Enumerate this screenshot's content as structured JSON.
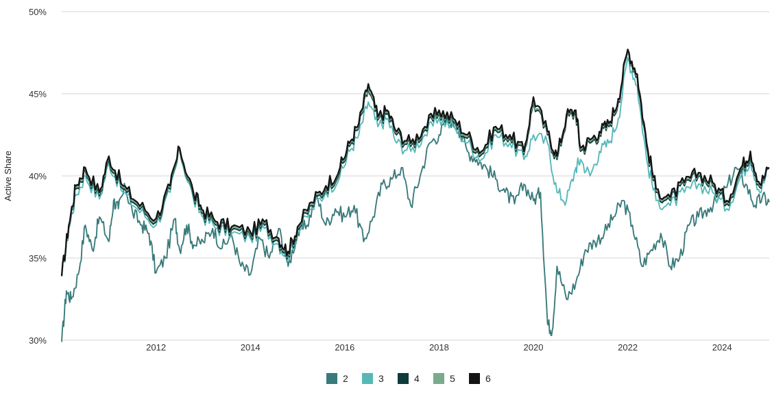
{
  "chart_data": {
    "type": "line",
    "title": "",
    "xlabel": "",
    "ylabel": "Active Share",
    "xlim": [
      2010.0,
      2025.0
    ],
    "ylim": [
      30,
      50
    ],
    "x_ticks": [
      2012,
      2014,
      2016,
      2018,
      2020,
      2022,
      2024
    ],
    "x_tick_labels": [
      "2012",
      "2014",
      "2016",
      "2018",
      "2020",
      "2022",
      "2024"
    ],
    "y_ticks": [
      30,
      35,
      40,
      45,
      50
    ],
    "y_tick_labels": [
      "30%",
      "35%",
      "40%",
      "45%",
      "50%"
    ],
    "grid": "horizontal",
    "legend_position": "bottom-center",
    "series": [
      {
        "name": "2",
        "color": "#3a7a7a",
        "x": [
          2010.0,
          2010.1,
          2010.2,
          2010.35,
          2010.5,
          2010.65,
          2010.8,
          2011.0,
          2011.1,
          2011.2,
          2011.35,
          2011.5,
          2011.7,
          2011.85,
          2012.0,
          2012.2,
          2012.4,
          2012.5,
          2012.65,
          2012.8,
          2013.0,
          2013.2,
          2013.4,
          2013.6,
          2013.8,
          2014.0,
          2014.2,
          2014.4,
          2014.6,
          2014.8,
          2015.0,
          2015.2,
          2015.4,
          2015.6,
          2015.8,
          2016.0,
          2016.2,
          2016.4,
          2016.6,
          2016.8,
          2017.0,
          2017.2,
          2017.4,
          2017.6,
          2017.8,
          2018.0,
          2018.2,
          2018.4,
          2018.6,
          2018.8,
          2019.0,
          2019.2,
          2019.4,
          2019.6,
          2019.8,
          2020.0,
          2020.15,
          2020.3,
          2020.4,
          2020.5,
          2020.7,
          2020.9,
          2021.1,
          2021.3,
          2021.5,
          2021.7,
          2021.9,
          2022.1,
          2022.3,
          2022.5,
          2022.7,
          2022.9,
          2023.1,
          2023.3,
          2023.5,
          2023.7,
          2023.9,
          2024.1,
          2024.3,
          2024.5,
          2024.7,
          2024.85,
          2025.0
        ],
        "y": [
          29.9,
          33.0,
          32.5,
          34.0,
          37.0,
          35.5,
          37.5,
          36.0,
          38.5,
          38.0,
          39.3,
          37.8,
          37.0,
          36.5,
          34.1,
          35.0,
          37.4,
          35.5,
          37.0,
          35.8,
          36.0,
          36.8,
          35.6,
          36.4,
          34.5,
          34.0,
          36.2,
          35.0,
          36.8,
          34.5,
          36.5,
          37.0,
          38.8,
          37.0,
          38.0,
          37.5,
          38.2,
          36.0,
          37.5,
          39.5,
          39.8,
          40.5,
          38.2,
          40.0,
          42.0,
          42.5,
          43.5,
          43.0,
          41.5,
          41.0,
          40.5,
          39.8,
          39.0,
          38.3,
          39.5,
          38.5,
          39.0,
          31.0,
          30.6,
          34.5,
          32.5,
          33.5,
          35.5,
          36.0,
          36.5,
          37.5,
          38.5,
          37.0,
          34.5,
          35.5,
          36.5,
          34.5,
          35.0,
          37.0,
          37.5,
          38.0,
          38.5,
          39.3,
          40.5,
          39.5,
          38.2,
          38.7,
          38.4
        ]
      },
      {
        "name": "3",
        "color": "#57b8b8",
        "x": [
          2010.0,
          2010.15,
          2010.3,
          2010.5,
          2010.8,
          2011.0,
          2011.3,
          2011.6,
          2012.0,
          2012.3,
          2012.5,
          2012.8,
          2013.0,
          2013.3,
          2013.6,
          2014.0,
          2014.3,
          2014.6,
          2014.8,
          2015.0,
          2015.3,
          2015.6,
          2015.9,
          2016.1,
          2016.3,
          2016.5,
          2016.7,
          2016.9,
          2017.1,
          2017.4,
          2017.7,
          2018.0,
          2018.3,
          2018.6,
          2018.9,
          2019.2,
          2019.5,
          2019.8,
          2020.0,
          2020.3,
          2020.5,
          2020.7,
          2020.9,
          2021.0,
          2021.2,
          2021.4,
          2021.6,
          2021.8,
          2022.0,
          2022.2,
          2022.4,
          2022.6,
          2022.9,
          2023.2,
          2023.5,
          2023.8,
          2024.1,
          2024.4,
          2024.6,
          2024.8,
          2025.0
        ],
        "y": [
          33.9,
          36.8,
          38.8,
          40.0,
          38.6,
          40.8,
          39.0,
          38.0,
          37.0,
          39.0,
          41.5,
          38.5,
          37.5,
          36.8,
          36.5,
          36.2,
          36.8,
          35.8,
          35.0,
          36.5,
          38.0,
          39.0,
          40.0,
          41.5,
          42.5,
          44.5,
          43.0,
          43.5,
          42.0,
          41.5,
          42.5,
          43.5,
          43.0,
          42.0,
          41.0,
          42.5,
          42.0,
          41.0,
          42.5,
          42.0,
          39.0,
          38.5,
          40.5,
          41.0,
          40.0,
          41.5,
          42.0,
          43.5,
          47.2,
          45.5,
          41.0,
          38.5,
          38.2,
          39.0,
          39.5,
          39.0,
          38.0,
          40.0,
          41.0,
          39.0,
          40.5
        ]
      },
      {
        "name": "4",
        "color": "#0f3b3b",
        "x": [
          2010.0,
          2010.15,
          2010.3,
          2010.5,
          2010.8,
          2011.0,
          2011.3,
          2011.6,
          2012.0,
          2012.3,
          2012.5,
          2012.8,
          2013.0,
          2013.3,
          2013.6,
          2014.0,
          2014.3,
          2014.6,
          2014.8,
          2015.0,
          2015.3,
          2015.6,
          2015.9,
          2016.1,
          2016.3,
          2016.5,
          2016.7,
          2016.9,
          2017.1,
          2017.4,
          2017.7,
          2018.0,
          2018.3,
          2018.6,
          2018.9,
          2019.2,
          2019.5,
          2019.8,
          2020.0,
          2020.3,
          2020.5,
          2020.7,
          2020.9,
          2021.0,
          2021.2,
          2021.4,
          2021.6,
          2021.8,
          2022.0,
          2022.2,
          2022.4,
          2022.6,
          2022.9,
          2023.2,
          2023.5,
          2023.8,
          2024.1,
          2024.4,
          2024.6,
          2024.8,
          2025.0
        ],
        "y": [
          33.9,
          36.9,
          39.2,
          40.3,
          38.8,
          41.0,
          39.2,
          38.2,
          37.2,
          39.2,
          41.6,
          38.7,
          37.7,
          37.0,
          36.7,
          36.4,
          37.0,
          36.0,
          35.2,
          36.7,
          38.2,
          39.2,
          40.3,
          41.8,
          43.0,
          45.3,
          43.4,
          43.8,
          42.5,
          41.8,
          42.8,
          43.8,
          43.3,
          42.3,
          41.3,
          42.8,
          42.3,
          41.3,
          44.5,
          42.5,
          41.0,
          43.5,
          43.8,
          41.5,
          42.0,
          42.5,
          43.0,
          44.5,
          47.6,
          46.0,
          41.8,
          39.0,
          38.5,
          39.4,
          40.0,
          39.4,
          38.3,
          40.3,
          41.3,
          39.3,
          40.5
        ]
      },
      {
        "name": "5",
        "color": "#7aab8c",
        "x": [
          2010.0,
          2010.15,
          2010.3,
          2010.5,
          2010.8,
          2011.0,
          2011.3,
          2011.6,
          2012.0,
          2012.3,
          2012.5,
          2012.8,
          2013.0,
          2013.3,
          2013.6,
          2014.0,
          2014.3,
          2014.6,
          2014.8,
          2015.0,
          2015.3,
          2015.6,
          2015.9,
          2016.1,
          2016.3,
          2016.5,
          2016.7,
          2016.9,
          2017.1,
          2017.4,
          2017.7,
          2018.0,
          2018.3,
          2018.6,
          2018.9,
          2019.2,
          2019.5,
          2019.8,
          2020.0,
          2020.3,
          2020.5,
          2020.7,
          2020.9,
          2021.0,
          2021.2,
          2021.4,
          2021.6,
          2021.8,
          2022.0,
          2022.2,
          2022.4,
          2022.6,
          2022.9,
          2023.2,
          2023.5,
          2023.8,
          2024.1,
          2024.4,
          2024.6,
          2024.8,
          2025.0
        ],
        "y": [
          33.9,
          36.9,
          39.3,
          40.4,
          38.9,
          41.1,
          39.3,
          38.3,
          37.3,
          39.3,
          41.6,
          38.8,
          37.8,
          37.1,
          36.8,
          36.5,
          37.1,
          36.1,
          35.3,
          36.8,
          38.3,
          39.3,
          40.4,
          41.9,
          43.1,
          45.4,
          43.5,
          43.9,
          42.6,
          41.9,
          42.9,
          43.9,
          43.4,
          42.4,
          41.4,
          42.9,
          42.4,
          41.4,
          44.6,
          42.6,
          41.1,
          43.6,
          43.9,
          41.6,
          42.1,
          42.6,
          43.1,
          44.6,
          47.6,
          46.1,
          41.9,
          39.1,
          38.6,
          39.5,
          40.1,
          39.5,
          38.4,
          40.4,
          41.4,
          39.4,
          40.5
        ]
      },
      {
        "name": "6",
        "color": "#141414",
        "x": [
          2010.0,
          2010.15,
          2010.3,
          2010.5,
          2010.8,
          2011.0,
          2011.3,
          2011.6,
          2012.0,
          2012.3,
          2012.5,
          2012.8,
          2013.0,
          2013.3,
          2013.6,
          2014.0,
          2014.3,
          2014.6,
          2014.8,
          2015.0,
          2015.3,
          2015.6,
          2015.9,
          2016.1,
          2016.3,
          2016.5,
          2016.7,
          2016.9,
          2017.1,
          2017.4,
          2017.7,
          2018.0,
          2018.3,
          2018.6,
          2018.9,
          2019.2,
          2019.5,
          2019.8,
          2020.0,
          2020.3,
          2020.5,
          2020.7,
          2020.9,
          2021.0,
          2021.2,
          2021.4,
          2021.6,
          2021.8,
          2022.0,
          2022.2,
          2022.4,
          2022.6,
          2022.9,
          2023.2,
          2023.5,
          2023.8,
          2024.1,
          2024.4,
          2024.6,
          2024.8,
          2025.0
        ],
        "y": [
          33.9,
          37.0,
          39.4,
          40.5,
          39.0,
          41.2,
          39.4,
          38.4,
          37.4,
          39.4,
          41.7,
          38.9,
          37.9,
          37.2,
          36.9,
          36.6,
          37.2,
          36.2,
          35.4,
          36.9,
          38.4,
          39.4,
          40.5,
          42.0,
          43.2,
          45.6,
          43.6,
          44.0,
          42.7,
          42.0,
          43.0,
          44.0,
          43.5,
          42.5,
          41.5,
          43.0,
          42.5,
          41.5,
          44.8,
          42.7,
          41.2,
          43.7,
          44.0,
          41.7,
          42.2,
          42.7,
          43.2,
          44.7,
          47.7,
          46.2,
          42.0,
          39.2,
          38.7,
          39.6,
          40.2,
          39.6,
          38.5,
          40.5,
          41.5,
          39.5,
          40.5
        ]
      }
    ]
  }
}
